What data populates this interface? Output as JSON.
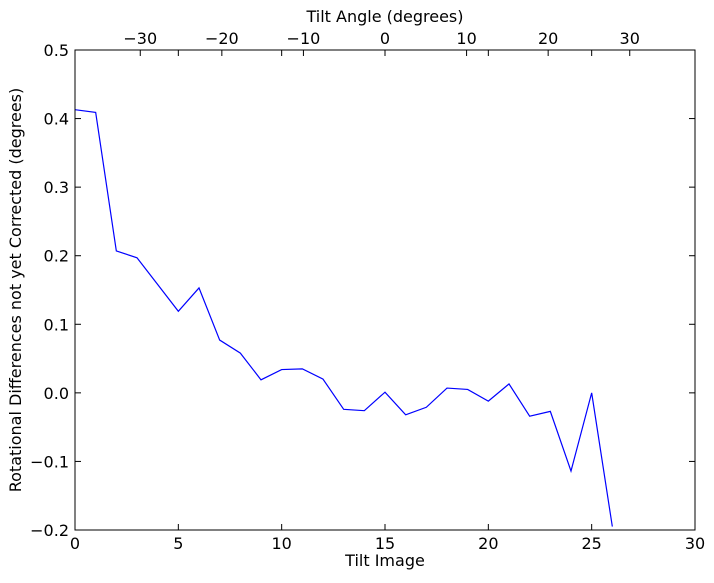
{
  "chart_data": {
    "type": "line",
    "title": "",
    "xlabel": "Tilt Image",
    "ylabel": "Rotational Differences not yet Corrected (degrees)",
    "secondary_xlabel": "Tilt Angle (degrees)",
    "xlim": [
      0,
      30
    ],
    "ylim": [
      -0.2,
      0.5
    ],
    "secondary_xlim": [
      -38,
      38
    ],
    "xticks": [
      0,
      5,
      10,
      15,
      20,
      25,
      30
    ],
    "yticks": [
      -0.2,
      -0.1,
      0.0,
      0.1,
      0.2,
      0.3,
      0.4,
      0.5
    ],
    "ytick_labels": [
      "−0.2",
      "−0.1",
      "0.0",
      "0.1",
      "0.2",
      "0.3",
      "0.4",
      "0.5"
    ],
    "secondary_xticks": [
      -30,
      -20,
      -10,
      0,
      10,
      20,
      30
    ],
    "secondary_xtick_labels": [
      "−30",
      "−20",
      "−10",
      "0",
      "10",
      "20",
      "30"
    ],
    "grid": false,
    "legend": "none",
    "series": [
      {
        "color": "#0000ff",
        "x": [
          0,
          1,
          2,
          3,
          4,
          5,
          6,
          7,
          8,
          9,
          10,
          11,
          12,
          13,
          14,
          15,
          16,
          17,
          18,
          19,
          20,
          21,
          22,
          23,
          24,
          25,
          26
        ],
        "values": [
          0.413,
          0.409,
          0.207,
          0.197,
          0.158,
          0.119,
          0.153,
          0.077,
          0.058,
          0.019,
          0.034,
          0.035,
          0.02,
          -0.024,
          -0.026,
          0.001,
          -0.032,
          -0.021,
          0.007,
          0.005,
          -0.012,
          0.013,
          -0.034,
          -0.027,
          -0.114,
          0.0,
          -0.195
        ]
      }
    ]
  }
}
